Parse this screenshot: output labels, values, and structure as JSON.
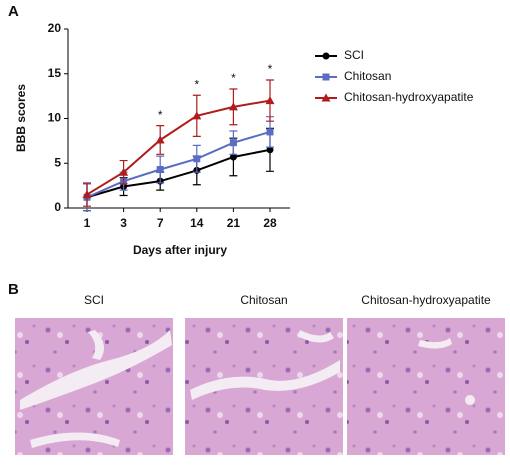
{
  "panel_labels": [
    "A",
    "B"
  ],
  "chart_data": {
    "type": "line",
    "y_label": "BBB scores",
    "x_label": "Days after injury",
    "categories": [
      "1",
      "3",
      "7",
      "14",
      "21",
      "28"
    ],
    "ylim": [
      0,
      20
    ],
    "yticks": [
      0,
      5,
      10,
      15,
      20
    ],
    "legend": "upper right",
    "series": [
      {
        "name": "SCI",
        "color": "#000000",
        "marker": "circle",
        "values": [
          1.2,
          2.4,
          3.0,
          4.2,
          5.7,
          6.5
        ],
        "errors": [
          1.5,
          1.0,
          1.0,
          1.6,
          2.1,
          2.4
        ]
      },
      {
        "name": "Chitosan",
        "color": "#5b6cc4",
        "marker": "square",
        "values": [
          1.2,
          3.0,
          4.3,
          5.5,
          7.3,
          8.5
        ],
        "errors": [
          1.5,
          1.0,
          1.5,
          1.5,
          1.3,
          1.7
        ]
      },
      {
        "name": "Chitosan-hydroxyapatite",
        "color": "#b01c1c",
        "marker": "triangle",
        "values": [
          1.5,
          4.0,
          7.6,
          10.3,
          11.3,
          12.0
        ],
        "errors": [
          1.3,
          1.3,
          1.6,
          2.3,
          2.0,
          2.3
        ]
      }
    ],
    "significance_labels": [
      null,
      null,
      "*",
      "*",
      "*",
      "*"
    ]
  },
  "images": {
    "titles": [
      "SCI",
      "Chitosan",
      "Chitosan-hydroxyapatite"
    ]
  }
}
